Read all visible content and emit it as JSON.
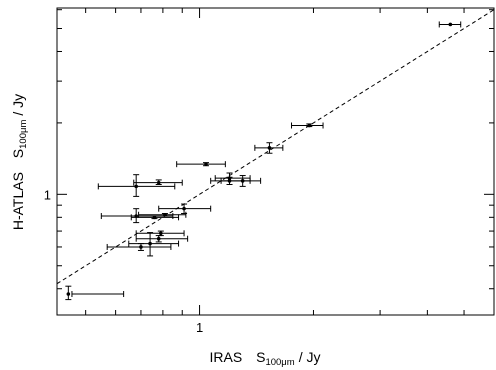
{
  "chart_data": {
    "type": "scatter",
    "xscale": "log",
    "yscale": "log",
    "xlim": [
      0.42,
      6.0
    ],
    "ylim": [
      0.31,
      6.1
    ],
    "x_major_ticks": [
      1
    ],
    "y_major_ticks": [
      1
    ],
    "x_tick_labels": [
      "1"
    ],
    "y_tick_labels": [
      "1"
    ],
    "xlabel": {
      "main": "IRAS",
      "symbol": "S",
      "subscript": "100μm",
      "unit": "/ Jy"
    },
    "ylabel": {
      "main": "H-ATLAS",
      "symbol": "S",
      "subscript": "100μm",
      "unit": "/ Jy"
    },
    "reference_line": {
      "type": "one-to-one",
      "style": "dashed"
    },
    "grid": false,
    "legend": "none",
    "points": [
      {
        "x": 4.6,
        "y": 5.2,
        "xerr": [
          4.3,
          4.9
        ],
        "yerr": [
          5.2,
          5.2
        ]
      },
      {
        "x": 1.95,
        "y": 1.95,
        "xerr": [
          1.75,
          2.12
        ],
        "yerr": [
          1.93,
          1.98
        ]
      },
      {
        "x": 1.53,
        "y": 1.57,
        "xerr": [
          1.4,
          1.66
        ],
        "yerr": [
          1.49,
          1.65
        ]
      },
      {
        "x": 1.04,
        "y": 1.34,
        "xerr": [
          0.87,
          1.17
        ],
        "yerr": [
          1.32,
          1.36
        ]
      },
      {
        "x": 1.3,
        "y": 1.14,
        "xerr": [
          1.14,
          1.45
        ],
        "yerr": [
          1.08,
          1.2
        ]
      },
      {
        "x": 1.2,
        "y": 1.17,
        "xerr": [
          1.1,
          1.36
        ],
        "yerr": [
          1.1,
          1.23
        ]
      },
      {
        "x": 1.2,
        "y": 1.14,
        "xerr": [
          1.07,
          1.36
        ],
        "yerr": [
          1.1,
          1.18
        ]
      },
      {
        "x": 0.78,
        "y": 1.12,
        "xerr": [
          0.67,
          0.9
        ],
        "yerr": [
          1.1,
          1.15
        ]
      },
      {
        "x": 0.68,
        "y": 1.08,
        "xerr": [
          0.54,
          0.86
        ],
        "yerr": [
          0.98,
          1.21
        ]
      },
      {
        "x": 0.91,
        "y": 0.87,
        "xerr": [
          0.78,
          1.07
        ],
        "yerr": [
          0.83,
          0.91
        ]
      },
      {
        "x": 0.81,
        "y": 0.82,
        "xerr": [
          0.69,
          0.92
        ],
        "yerr": [
          0.81,
          0.83
        ]
      },
      {
        "x": 0.68,
        "y": 0.81,
        "xerr": [
          0.55,
          0.85
        ],
        "yerr": [
          0.76,
          0.87
        ]
      },
      {
        "x": 0.76,
        "y": 0.8,
        "xerr": [
          0.66,
          0.88
        ],
        "yerr": [
          0.79,
          0.81
        ]
      },
      {
        "x": 0.79,
        "y": 0.685,
        "xerr": [
          0.68,
          0.91
        ],
        "yerr": [
          0.67,
          0.7
        ]
      },
      {
        "x": 0.78,
        "y": 0.65,
        "xerr": [
          0.68,
          0.93
        ],
        "yerr": [
          0.63,
          0.67
        ]
      },
      {
        "x": 0.74,
        "y": 0.62,
        "xerr": [
          0.65,
          0.88
        ],
        "yerr": [
          0.55,
          0.69
        ]
      },
      {
        "x": 0.7,
        "y": 0.6,
        "xerr": [
          0.57,
          0.84
        ],
        "yerr": [
          0.58,
          0.62
        ]
      },
      {
        "x": 0.45,
        "y": 0.38,
        "xerr": [
          0.46,
          0.63
        ],
        "yerr": [
          0.36,
          0.41
        ]
      }
    ]
  }
}
